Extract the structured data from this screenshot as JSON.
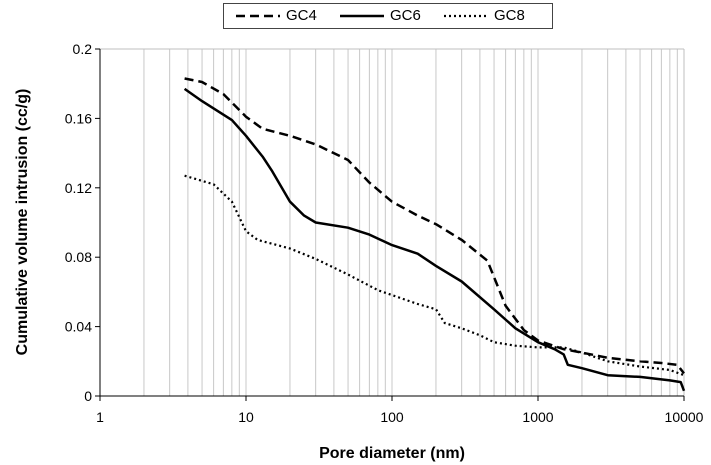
{
  "chart_data": {
    "type": "line",
    "xlabel": "Pore diameter (nm)",
    "ylabel": "Cumulative volume intrusion (cc/g)",
    "xscale": "log",
    "xlim": [
      1,
      10000
    ],
    "ylim": [
      0,
      0.2
    ],
    "xticks": [
      1,
      10,
      100,
      1000,
      10000
    ],
    "xtick_labels": [
      "1",
      "10",
      "100",
      "1000",
      "10000"
    ],
    "yticks": [
      0,
      0.04,
      0.08,
      0.12,
      0.16,
      0.2
    ],
    "ytick_labels": [
      "0",
      "0.04",
      "0.08",
      "0.12",
      "0.16",
      "0.2"
    ],
    "grid": "vertical log gridlines",
    "legend": "top-center",
    "series": [
      {
        "name": "GC4",
        "style": "dashed",
        "color": "#000000",
        "points": [
          [
            3.8,
            0.183
          ],
          [
            5,
            0.181
          ],
          [
            7,
            0.174
          ],
          [
            10,
            0.161
          ],
          [
            13,
            0.154
          ],
          [
            20,
            0.15
          ],
          [
            30,
            0.145
          ],
          [
            50,
            0.136
          ],
          [
            70,
            0.123
          ],
          [
            100,
            0.112
          ],
          [
            150,
            0.104
          ],
          [
            200,
            0.099
          ],
          [
            300,
            0.09
          ],
          [
            450,
            0.078
          ],
          [
            600,
            0.052
          ],
          [
            800,
            0.038
          ],
          [
            1000,
            0.032
          ],
          [
            1500,
            0.027
          ],
          [
            2000,
            0.025
          ],
          [
            3000,
            0.022
          ],
          [
            5000,
            0.02
          ],
          [
            7000,
            0.019
          ],
          [
            9000,
            0.018
          ],
          [
            10000,
            0.013
          ]
        ]
      },
      {
        "name": "GC6",
        "style": "solid",
        "color": "#000000",
        "points": [
          [
            3.8,
            0.177
          ],
          [
            5,
            0.17
          ],
          [
            8,
            0.159
          ],
          [
            10,
            0.15
          ],
          [
            13,
            0.138
          ],
          [
            15,
            0.13
          ],
          [
            20,
            0.112
          ],
          [
            25,
            0.104
          ],
          [
            30,
            0.1
          ],
          [
            50,
            0.097
          ],
          [
            70,
            0.093
          ],
          [
            100,
            0.087
          ],
          [
            150,
            0.082
          ],
          [
            200,
            0.075
          ],
          [
            300,
            0.066
          ],
          [
            500,
            0.05
          ],
          [
            700,
            0.039
          ],
          [
            1000,
            0.031
          ],
          [
            1300,
            0.027
          ],
          [
            1500,
            0.024
          ],
          [
            1600,
            0.018
          ],
          [
            2000,
            0.016
          ],
          [
            3000,
            0.012
          ],
          [
            5000,
            0.011
          ],
          [
            8000,
            0.009
          ],
          [
            9500,
            0.008
          ],
          [
            10000,
            0.003
          ]
        ]
      },
      {
        "name": "GC8",
        "style": "dotted",
        "color": "#000000",
        "points": [
          [
            3.8,
            0.127
          ],
          [
            6,
            0.122
          ],
          [
            8,
            0.112
          ],
          [
            10,
            0.095
          ],
          [
            12,
            0.09
          ],
          [
            20,
            0.085
          ],
          [
            30,
            0.079
          ],
          [
            50,
            0.07
          ],
          [
            80,
            0.061
          ],
          [
            150,
            0.053
          ],
          [
            200,
            0.05
          ],
          [
            230,
            0.042
          ],
          [
            300,
            0.039
          ],
          [
            400,
            0.035
          ],
          [
            500,
            0.031
          ],
          [
            700,
            0.029
          ],
          [
            1000,
            0.028
          ],
          [
            1500,
            0.028
          ],
          [
            2000,
            0.025
          ],
          [
            3000,
            0.02
          ],
          [
            5000,
            0.017
          ],
          [
            8000,
            0.015
          ],
          [
            10000,
            0.012
          ]
        ]
      }
    ]
  }
}
